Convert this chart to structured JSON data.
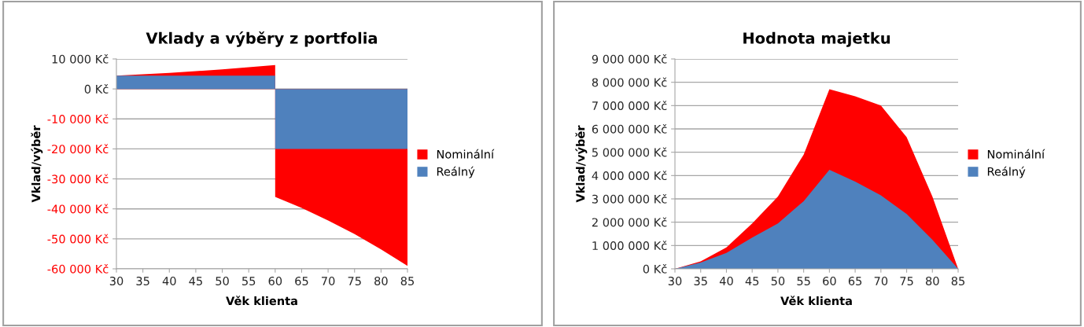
{
  "chart_data": [
    {
      "type": "area",
      "title": "Vklady a výběry z portfolia",
      "xlabel": "Věk klienta",
      "ylabel": "Vklad/výběr",
      "legend": "right",
      "grid": "y",
      "xlim": [
        30,
        85
      ],
      "xticks": [
        30,
        35,
        40,
        45,
        50,
        55,
        60,
        65,
        70,
        75,
        80,
        85
      ],
      "ylim": [
        -60000,
        10000
      ],
      "yticks": [
        {
          "value": 10000,
          "label": "10 000 Kč"
        },
        {
          "value": 0,
          "label": "0 Kč"
        },
        {
          "value": -10000,
          "label": "-10 000 Kč"
        },
        {
          "value": -20000,
          "label": "-20 000 Kč"
        },
        {
          "value": -30000,
          "label": "-30 000 Kč"
        },
        {
          "value": -40000,
          "label": "-40 000 Kč"
        },
        {
          "value": -50000,
          "label": "-50 000 Kč"
        },
        {
          "value": -60000,
          "label": "-60 000 Kč"
        }
      ],
      "series": [
        {
          "name": "Nominální",
          "color": "#ff0000",
          "x": [
            30,
            35,
            40,
            45,
            50,
            55,
            60,
            60,
            65,
            70,
            75,
            80,
            85
          ],
          "values": [
            4400,
            4860,
            5360,
            5920,
            6540,
            7220,
            8000,
            -36000,
            -39700,
            -43900,
            -48400,
            -53500,
            -59000
          ]
        },
        {
          "name": "Reálný",
          "color": "#4f81bd",
          "x": [
            30,
            60,
            60,
            85
          ],
          "values": [
            4400,
            4400,
            -20000,
            -20000
          ]
        }
      ]
    },
    {
      "type": "area",
      "title": "Hodnota majetku",
      "xlabel": "Věk klienta",
      "ylabel": "Vklad/výběr",
      "legend": "right",
      "grid": "y",
      "xlim": [
        30,
        85
      ],
      "xticks": [
        30,
        35,
        40,
        45,
        50,
        55,
        60,
        65,
        70,
        75,
        80,
        85
      ],
      "ylim": [
        0,
        9000000
      ],
      "yticks": [
        {
          "value": 0,
          "label": "0 Kč"
        },
        {
          "value": 1000000,
          "label": "1 000 000 Kč"
        },
        {
          "value": 2000000,
          "label": "2 000 000 Kč"
        },
        {
          "value": 3000000,
          "label": "3 000 000 Kč"
        },
        {
          "value": 4000000,
          "label": "4 000 000 Kč"
        },
        {
          "value": 5000000,
          "label": "5 000 000 Kč"
        },
        {
          "value": 6000000,
          "label": "6 000 000 Kč"
        },
        {
          "value": 7000000,
          "label": "7 000 000 Kč"
        },
        {
          "value": 8000000,
          "label": "8 000 000 Kč"
        },
        {
          "value": 9000000,
          "label": "9 000 000 Kč"
        }
      ],
      "series": [
        {
          "name": "Nominální",
          "color": "#ff0000",
          "x": [
            30,
            35,
            40,
            45,
            50,
            55,
            60,
            65,
            70,
            75,
            80,
            85
          ],
          "values": [
            0,
            320000,
            920000,
            1950000,
            3100000,
            4900000,
            7700000,
            7400000,
            7000000,
            5650000,
            3100000,
            0
          ]
        },
        {
          "name": "Reálný",
          "color": "#4f81bd",
          "x": [
            30,
            35,
            40,
            45,
            50,
            55,
            60,
            65,
            70,
            75,
            80,
            85
          ],
          "values": [
            0,
            270000,
            680000,
            1340000,
            1950000,
            2900000,
            4250000,
            3740000,
            3150000,
            2350000,
            1250000,
            0
          ]
        }
      ]
    }
  ]
}
